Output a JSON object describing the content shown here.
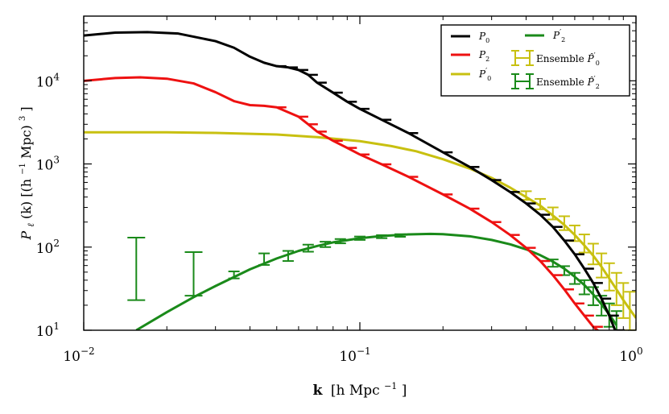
{
  "chart_data": {
    "type": "line",
    "scale": "log-log",
    "title": "",
    "xlabel_main": "k",
    "xlabel_unit": "[h Mpc",
    "xlabel_exp": "−1",
    "xlabel_close": "]",
    "ylabel_main": "P",
    "ylabel_sub": "ℓ",
    "ylabel_arg": "(k)  [(h",
    "ylabel_exp1": "−1",
    "ylabel_mid": "Mpc)",
    "ylabel_exp2": "3",
    "ylabel_close": "]",
    "xlim": [
      0.01,
      1.0
    ],
    "ylim": [
      10,
      60000
    ],
    "x_ticks": [
      {
        "value": 0.01,
        "base": "10",
        "exp": "−2"
      },
      {
        "value": 0.1,
        "base": "10",
        "exp": "−1"
      },
      {
        "value": 1.0,
        "base": "10",
        "exp": "0"
      }
    ],
    "y_ticks": [
      {
        "value": 10,
        "base": "10",
        "exp": "1"
      },
      {
        "value": 100,
        "base": "10",
        "exp": "2"
      },
      {
        "value": 1000,
        "base": "10",
        "exp": "3"
      },
      {
        "value": 10000,
        "base": "10",
        "exp": "4"
      }
    ],
    "series": [
      {
        "name": "P0",
        "label_main": "P",
        "label_sub": "0",
        "label_prime": "",
        "color": "#000000",
        "x": [
          0.01,
          0.013,
          0.017,
          0.022,
          0.03,
          0.035,
          0.04,
          0.045,
          0.05,
          0.055,
          0.06,
          0.065,
          0.07,
          0.08,
          0.09,
          0.1,
          0.12,
          0.15,
          0.2,
          0.25,
          0.3,
          0.35,
          0.4,
          0.45,
          0.5,
          0.55,
          0.6,
          0.65,
          0.7,
          0.75,
          0.8,
          0.84
        ],
        "y": [
          35000,
          38000,
          38500,
          37000,
          30000,
          25000,
          19500,
          16500,
          15000,
          14500,
          13500,
          11800,
          9500,
          7200,
          5600,
          4600,
          3400,
          2350,
          1380,
          920,
          640,
          460,
          335,
          245,
          175,
          120,
          82,
          55,
          37,
          24,
          15,
          10
        ]
      },
      {
        "name": "P2",
        "label_main": "P",
        "label_sub": "2",
        "label_prime": "",
        "color": "#ee1111",
        "x": [
          0.01,
          0.013,
          0.016,
          0.02,
          0.025,
          0.03,
          0.035,
          0.04,
          0.045,
          0.05,
          0.06,
          0.065,
          0.07,
          0.08,
          0.09,
          0.1,
          0.12,
          0.15,
          0.2,
          0.25,
          0.3,
          0.35,
          0.4,
          0.45,
          0.5,
          0.55,
          0.6,
          0.65,
          0.7,
          0.74
        ],
        "y": [
          10000,
          10800,
          11000,
          10600,
          9300,
          7300,
          5700,
          5100,
          5000,
          4800,
          3700,
          3000,
          2450,
          1900,
          1560,
          1300,
          990,
          700,
          430,
          290,
          200,
          140,
          98,
          68,
          46,
          31,
          21,
          15,
          11,
          9.5
        ]
      },
      {
        "name": "P'0",
        "label_main": "P",
        "label_sub": "0",
        "label_prime": "′",
        "color": "#c8c010",
        "x": [
          0.01,
          0.02,
          0.03,
          0.05,
          0.07,
          0.1,
          0.13,
          0.16,
          0.2,
          0.25,
          0.3,
          0.35,
          0.4,
          0.45,
          0.5,
          0.55,
          0.6,
          0.65,
          0.7,
          0.75,
          0.8,
          0.85,
          0.9,
          1.0
        ],
        "y": [
          2400,
          2400,
          2360,
          2260,
          2100,
          1880,
          1640,
          1420,
          1140,
          880,
          680,
          520,
          400,
          315,
          240,
          185,
          140,
          105,
          79,
          58,
          42,
          31,
          23,
          14
        ]
      },
      {
        "name": "P'2",
        "label_main": "P",
        "label_sub": "2",
        "label_prime": "′",
        "color": "#1a8a1a",
        "x": [
          0.0155,
          0.02,
          0.025,
          0.03,
          0.04,
          0.05,
          0.06,
          0.07,
          0.08,
          0.1,
          0.12,
          0.15,
          0.18,
          0.2,
          0.25,
          0.3,
          0.35,
          0.4,
          0.45,
          0.5,
          0.55,
          0.6,
          0.65,
          0.7,
          0.75,
          0.8,
          0.85
        ],
        "y": [
          10,
          16.5,
          25,
          34,
          54,
          73,
          90,
          103,
          114,
          128,
          136,
          142,
          144,
          143,
          135,
          122,
          108,
          94,
          80,
          67,
          55,
          44,
          35,
          27,
          20.5,
          15.5,
          11.5
        ]
      }
    ],
    "ensemble_series": [
      {
        "name": "Ensemble P'0",
        "color": "#c8c010",
        "points": [
          {
            "x": 0.4,
            "y": 420,
            "lo": 370,
            "hi": 470
          },
          {
            "x": 0.45,
            "y": 330,
            "lo": 285,
            "hi": 380
          },
          {
            "x": 0.5,
            "y": 255,
            "lo": 215,
            "hi": 300
          },
          {
            "x": 0.55,
            "y": 195,
            "lo": 160,
            "hi": 235
          },
          {
            "x": 0.6,
            "y": 148,
            "lo": 118,
            "hi": 182
          },
          {
            "x": 0.65,
            "y": 112,
            "lo": 86,
            "hi": 142
          },
          {
            "x": 0.7,
            "y": 84,
            "lo": 62,
            "hi": 110
          },
          {
            "x": 0.75,
            "y": 62,
            "lo": 43,
            "hi": 84
          },
          {
            "x": 0.8,
            "y": 45,
            "lo": 30,
            "hi": 64
          },
          {
            "x": 0.85,
            "y": 33,
            "lo": 20,
            "hi": 49
          },
          {
            "x": 0.9,
            "y": 24,
            "lo": 14,
            "hi": 37
          },
          {
            "x": 0.95,
            "y": 18,
            "lo": 10,
            "hi": 29
          }
        ]
      },
      {
        "name": "Ensemble P'2",
        "color": "#1a8a1a",
        "points": [
          {
            "x": 0.0155,
            "y": 55,
            "lo": 23,
            "hi": 130
          },
          {
            "x": 0.025,
            "y": 45,
            "lo": 26,
            "hi": 87
          },
          {
            "x": 0.035,
            "y": 46,
            "lo": 42,
            "hi": 51
          },
          {
            "x": 0.045,
            "y": 70,
            "lo": 61,
            "hi": 84
          },
          {
            "x": 0.055,
            "y": 79,
            "lo": 68,
            "hi": 90
          },
          {
            "x": 0.065,
            "y": 97,
            "lo": 88,
            "hi": 107
          },
          {
            "x": 0.075,
            "y": 108,
            "lo": 100,
            "hi": 116
          },
          {
            "x": 0.085,
            "y": 118,
            "lo": 111,
            "hi": 125
          },
          {
            "x": 0.1,
            "y": 128,
            "lo": 122,
            "hi": 134
          },
          {
            "x": 0.12,
            "y": 133,
            "lo": 128,
            "hi": 139
          },
          {
            "x": 0.14,
            "y": 138,
            "lo": 133,
            "hi": 143
          },
          {
            "x": 0.5,
            "y": 64,
            "lo": 58,
            "hi": 71
          },
          {
            "x": 0.55,
            "y": 52,
            "lo": 46,
            "hi": 59
          },
          {
            "x": 0.6,
            "y": 42,
            "lo": 36,
            "hi": 49
          },
          {
            "x": 0.65,
            "y": 33,
            "lo": 27,
            "hi": 40
          },
          {
            "x": 0.7,
            "y": 26,
            "lo": 20,
            "hi": 33
          },
          {
            "x": 0.75,
            "y": 20,
            "lo": 15,
            "hi": 26
          },
          {
            "x": 0.8,
            "y": 15,
            "lo": 11,
            "hi": 21
          },
          {
            "x": 0.85,
            "y": 12,
            "lo": 9,
            "hi": 17
          }
        ]
      }
    ],
    "legend": {
      "position": "top-right",
      "line_entries": [
        {
          "label_main": "P",
          "label_sub": "0",
          "label_prime": "",
          "color": "#000000"
        },
        {
          "label_main": "P",
          "label_sub": "2",
          "label_prime": "",
          "color": "#ee1111"
        },
        {
          "label_main": "P",
          "label_sub": "0",
          "label_prime": "′",
          "color": "#c8c010"
        },
        {
          "label_main": "P",
          "label_sub": "2",
          "label_prime": "′",
          "color": "#1a8a1a"
        }
      ],
      "errorbar_entries": [
        {
          "label_prefix": "Ensemble",
          "label_main": "P̂",
          "label_sub": "0",
          "label_prime": "′",
          "color": "#c8c010"
        },
        {
          "label_prefix": "Ensemble",
          "label_main": "P̂",
          "label_sub": "2",
          "label_prime": "′",
          "color": "#1a8a1a"
        }
      ]
    }
  }
}
